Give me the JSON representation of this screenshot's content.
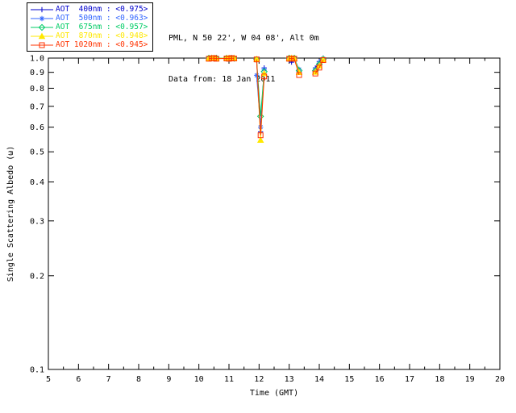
{
  "header": {
    "site_line": "PML, N 50 22', W 04 08', Alt 0m",
    "date_line": "Data from: 18 Jan 2011"
  },
  "chart_data": {
    "type": "line",
    "title": "",
    "xlabel": "Time (GMT)",
    "ylabel": "Single Scattering Albedo (ω)",
    "xlim": [
      5,
      20
    ],
    "ylim": [
      0.1,
      1.0
    ],
    "y_scale": "log",
    "grid": false,
    "legend_position": "top-left",
    "x_ticks": [
      5,
      6,
      7,
      8,
      9,
      10,
      11,
      12,
      13,
      14,
      15,
      16,
      17,
      18,
      19,
      20
    ],
    "y_ticks": [
      0.1,
      0.2,
      0.3,
      0.4,
      0.5,
      0.6,
      0.7,
      0.8,
      0.9,
      1.0
    ],
    "x": [
      10.33,
      10.42,
      10.5,
      10.58,
      10.92,
      11.0,
      11.08,
      11.17,
      11.92,
      12.05,
      12.17,
      13.0,
      13.08,
      13.17,
      13.33,
      13.87,
      14.0,
      14.13
    ],
    "segments": [
      [
        0,
        7
      ],
      [
        8,
        10
      ],
      [
        11,
        14
      ],
      [
        15,
        17
      ]
    ],
    "series": [
      {
        "name": "AOT  400nm : <0.975>",
        "wavelength": "400nm",
        "mean": "<0.975>",
        "color": "#0000cc",
        "marker": "plus",
        "values": [
          0.998,
          1.0,
          0.997,
          1.0,
          1.0,
          0.998,
          1.0,
          1.0,
          0.985,
          0.58,
          0.93,
          1.0,
          0.97,
          1.0,
          0.905,
          0.93,
          0.975,
          1.0
        ]
      },
      {
        "name": "AOT  500nm : <0.963>",
        "wavelength": "500nm",
        "mean": "<0.963>",
        "color": "#3366ff",
        "marker": "asterisk",
        "values": [
          1.0,
          0.997,
          1.0,
          0.998,
          0.998,
          1.0,
          0.997,
          1.0,
          0.88,
          0.6,
          0.92,
          0.998,
          1.0,
          0.997,
          0.92,
          0.92,
          0.965,
          0.995
        ]
      },
      {
        "name": "AOT  675nm : <0.957>",
        "wavelength": "675nm",
        "mean": "<0.957>",
        "color": "#00cc66",
        "marker": "diamond",
        "values": [
          1.0,
          1.0,
          0.998,
          1.0,
          1.0,
          0.997,
          1.0,
          0.998,
          0.99,
          0.65,
          0.905,
          1.0,
          0.998,
          1.0,
          0.912,
          0.91,
          0.955,
          0.992
        ]
      },
      {
        "name": "AOT  870nm : <0.948>",
        "wavelength": "870nm",
        "mean": "<0.948>",
        "color": "#ffe800",
        "marker": "triangle",
        "values": [
          0.997,
          1.0,
          1.0,
          0.997,
          1.0,
          1.0,
          0.998,
          1.0,
          0.992,
          0.545,
          0.893,
          0.997,
          1.0,
          0.998,
          0.9,
          0.902,
          0.945,
          0.988
        ]
      },
      {
        "name": "AOT 1020nm : <0.945>",
        "wavelength": "1020nm",
        "mean": "<0.945>",
        "color": "#ff3300",
        "marker": "square",
        "values": [
          0.995,
          0.998,
          1.0,
          0.995,
          0.997,
          0.995,
          1.0,
          0.997,
          0.99,
          0.565,
          0.873,
          0.995,
          0.997,
          0.995,
          0.882,
          0.892,
          0.932,
          0.985
        ]
      }
    ]
  }
}
